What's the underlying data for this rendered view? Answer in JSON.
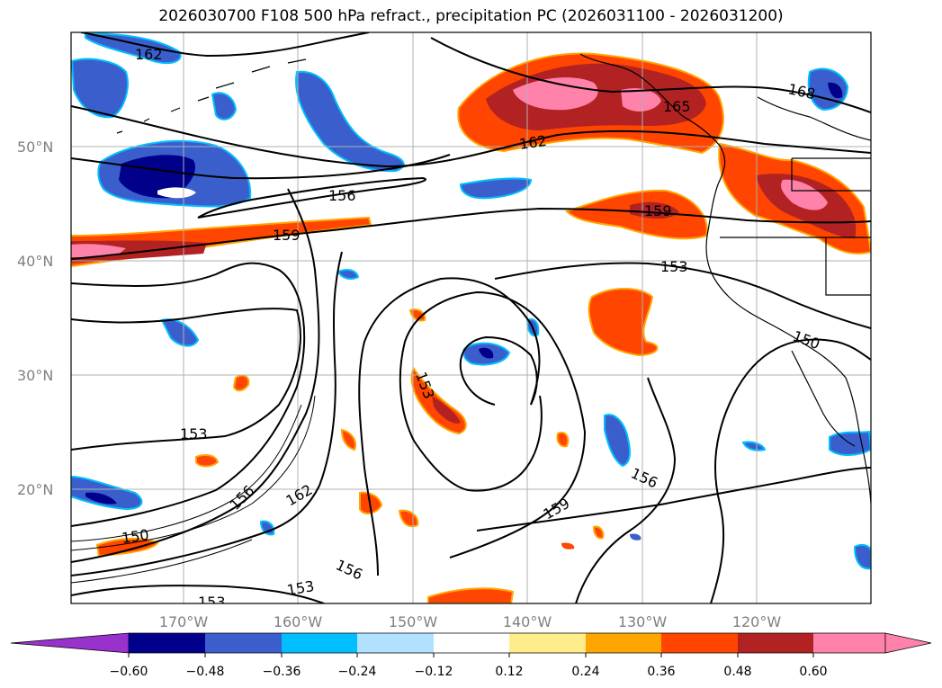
{
  "title": "2026030700 F108 500 hPa refract., precipitation PC (2026031100 - 2026031200)",
  "map": {
    "lat_labels": [
      "50°N",
      "40°N",
      "30°N",
      "20°N"
    ],
    "lon_labels": [
      "170°W",
      "160°W",
      "150°W",
      "140°W",
      "130°W",
      "120°W"
    ],
    "contour_labels": [
      "162",
      "168",
      "165",
      "162",
      "156",
      "159",
      "159",
      "153",
      "150",
      "153",
      "153",
      "156",
      "162",
      "159",
      "156",
      "150",
      "156",
      "153",
      "153"
    ]
  },
  "colorbar": {
    "ticks": [
      "−0.60",
      "−0.48",
      "−0.36",
      "−0.24",
      "−0.12",
      "0.12",
      "0.24",
      "0.36",
      "0.48",
      "0.60"
    ],
    "colors": [
      "#9932cc",
      "#00008b",
      "#3a5fcd",
      "#00bfff",
      "#b0e2ff",
      "#ffffff",
      "#ffec8b",
      "#ffa500",
      "#ff4500",
      "#b22222",
      "#ff82ab"
    ]
  }
}
